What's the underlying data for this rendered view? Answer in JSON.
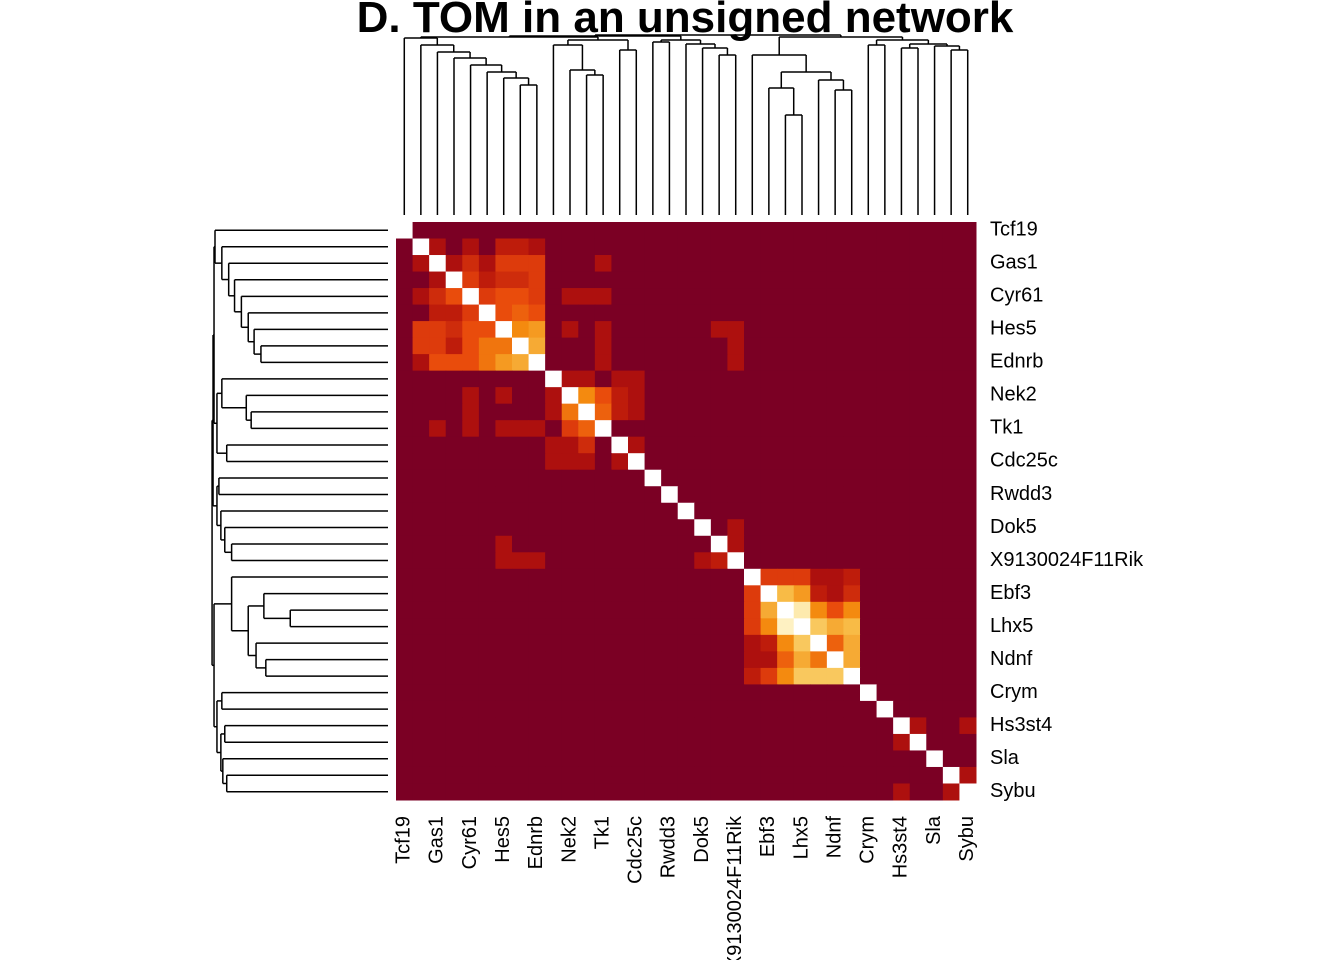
{
  "chart_data": {
    "type": "heatmap",
    "title": "D. TOM in an unsigned network",
    "categories": [
      "Tcf19",
      null,
      "Gas1",
      null,
      "Cyr61",
      null,
      "Hes5",
      null,
      "Ednrb",
      null,
      "Nek2",
      null,
      "Tk1",
      null,
      "Cdc25c",
      null,
      "Rwdd3",
      null,
      "Dok5",
      null,
      "X9130024F11Rik",
      null,
      "Ebf3",
      null,
      "Lhx5",
      null,
      "Ndnf",
      null,
      "Crym",
      null,
      "Hs3st4",
      null,
      "Sla",
      null,
      "Sybu"
    ],
    "zlim": [
      0,
      1
    ],
    "colorscale": [
      "#7b0024",
      "#b3120b",
      "#e8450c",
      "#f48a0f",
      "#f8c04c",
      "#fde8a8",
      "#ffffe8"
    ],
    "na_color": "#ffffff",
    "values": [
      [
        null,
        0,
        0,
        0,
        0,
        0,
        0,
        0,
        0,
        0,
        0,
        0,
        0,
        0,
        0,
        0,
        0,
        0,
        0,
        0,
        0,
        0,
        0,
        0,
        0,
        0,
        0,
        0,
        0,
        0,
        0,
        0,
        0,
        0,
        0
      ],
      [
        0,
        null,
        0.15,
        0,
        0.15,
        0,
        0.2,
        0.2,
        0.15,
        0,
        0,
        0,
        0,
        0,
        0,
        0,
        0,
        0,
        0,
        0,
        0,
        0,
        0,
        0,
        0,
        0,
        0,
        0,
        0,
        0,
        0,
        0,
        0,
        0,
        0
      ],
      [
        0,
        0.15,
        null,
        0.15,
        0.25,
        0.15,
        0.3,
        0.3,
        0.3,
        0,
        0,
        0,
        0.15,
        0,
        0,
        0,
        0,
        0,
        0,
        0,
        0,
        0,
        0,
        0,
        0,
        0,
        0,
        0,
        0,
        0,
        0,
        0,
        0,
        0,
        0
      ],
      [
        0,
        0,
        0.15,
        null,
        0.3,
        0.2,
        0.25,
        0.25,
        0.3,
        0,
        0,
        0,
        0,
        0,
        0,
        0,
        0,
        0,
        0,
        0,
        0,
        0,
        0,
        0,
        0,
        0,
        0,
        0,
        0,
        0,
        0,
        0,
        0,
        0,
        0
      ],
      [
        0,
        0.15,
        0.25,
        0.35,
        null,
        0.3,
        0.35,
        0.35,
        0.3,
        0,
        0.15,
        0.15,
        0.15,
        0,
        0,
        0,
        0,
        0,
        0,
        0,
        0,
        0,
        0,
        0,
        0,
        0,
        0,
        0,
        0,
        0,
        0,
        0,
        0,
        0,
        0
      ],
      [
        0,
        0,
        0.2,
        0.2,
        0.3,
        null,
        0.35,
        0.4,
        0.35,
        0,
        0,
        0,
        0,
        0,
        0,
        0,
        0,
        0,
        0,
        0,
        0,
        0,
        0,
        0,
        0,
        0,
        0,
        0,
        0,
        0,
        0,
        0,
        0,
        0,
        0
      ],
      [
        0,
        0.3,
        0.3,
        0.25,
        0.35,
        0.35,
        null,
        0.5,
        0.55,
        0,
        0.15,
        0,
        0.15,
        0,
        0,
        0,
        0,
        0,
        0,
        0.15,
        0.15,
        0,
        0,
        0,
        0,
        0,
        0,
        0,
        0,
        0,
        0,
        0,
        0,
        0,
        0
      ],
      [
        0,
        0.3,
        0.3,
        0.2,
        0.35,
        0.45,
        0.45,
        null,
        0.6,
        0,
        0,
        0,
        0.15,
        0,
        0,
        0,
        0,
        0,
        0,
        0,
        0.15,
        0,
        0,
        0,
        0,
        0,
        0,
        0,
        0,
        0,
        0,
        0,
        0,
        0,
        0
      ],
      [
        0,
        0.15,
        0.35,
        0.35,
        0.35,
        0.45,
        0.55,
        0.6,
        null,
        0,
        0,
        0,
        0.15,
        0,
        0,
        0,
        0,
        0,
        0,
        0,
        0.15,
        0,
        0,
        0,
        0,
        0,
        0,
        0,
        0,
        0,
        0,
        0,
        0,
        0,
        0
      ],
      [
        0,
        0,
        0,
        0,
        0,
        0,
        0,
        0,
        0,
        null,
        0.15,
        0.15,
        0,
        0.15,
        0.15,
        0,
        0,
        0,
        0,
        0,
        0,
        0,
        0,
        0,
        0,
        0,
        0,
        0,
        0,
        0,
        0,
        0,
        0,
        0,
        0
      ],
      [
        0,
        0,
        0,
        0,
        0.15,
        0,
        0.15,
        0,
        0,
        0.15,
        null,
        0.5,
        0.35,
        0.2,
        0.15,
        0,
        0,
        0,
        0,
        0,
        0,
        0,
        0,
        0,
        0,
        0,
        0,
        0,
        0,
        0,
        0,
        0,
        0,
        0,
        0
      ],
      [
        0,
        0,
        0,
        0,
        0.15,
        0,
        0,
        0,
        0,
        0.15,
        0.45,
        null,
        0.4,
        0.2,
        0.15,
        0,
        0,
        0,
        0,
        0,
        0,
        0,
        0,
        0,
        0,
        0,
        0,
        0,
        0,
        0,
        0,
        0,
        0,
        0,
        0
      ],
      [
        0,
        0,
        0.15,
        0,
        0.15,
        0,
        0.15,
        0.15,
        0.15,
        0,
        0.3,
        0.4,
        null,
        0,
        0,
        0,
        0,
        0,
        0,
        0,
        0,
        0,
        0,
        0,
        0,
        0,
        0,
        0,
        0,
        0,
        0,
        0,
        0,
        0,
        0
      ],
      [
        0,
        0,
        0,
        0,
        0,
        0,
        0,
        0,
        0,
        0.15,
        0.15,
        0.25,
        0,
        null,
        0.15,
        0,
        0,
        0,
        0,
        0,
        0,
        0,
        0,
        0,
        0,
        0,
        0,
        0,
        0,
        0,
        0,
        0,
        0,
        0,
        0
      ],
      [
        0,
        0,
        0,
        0,
        0,
        0,
        0,
        0,
        0,
        0.15,
        0.15,
        0.15,
        0,
        0.15,
        null,
        0,
        0,
        0,
        0,
        0,
        0,
        0,
        0,
        0,
        0,
        0,
        0,
        0,
        0,
        0,
        0,
        0,
        0,
        0,
        0
      ],
      [
        0,
        0,
        0,
        0,
        0,
        0,
        0,
        0,
        0,
        0,
        0,
        0,
        0,
        0,
        0,
        null,
        0,
        0,
        0,
        0,
        0,
        0,
        0,
        0,
        0,
        0,
        0,
        0,
        0,
        0,
        0,
        0,
        0,
        0,
        0
      ],
      [
        0,
        0,
        0,
        0,
        0,
        0,
        0,
        0,
        0,
        0,
        0,
        0,
        0,
        0,
        0,
        0,
        null,
        0,
        0,
        0,
        0,
        0,
        0,
        0,
        0,
        0,
        0,
        0,
        0,
        0,
        0,
        0,
        0,
        0,
        0
      ],
      [
        0,
        0,
        0,
        0,
        0,
        0,
        0,
        0,
        0,
        0,
        0,
        0,
        0,
        0,
        0,
        0,
        0,
        null,
        0,
        0,
        0,
        0,
        0,
        0,
        0,
        0,
        0,
        0,
        0,
        0,
        0,
        0,
        0,
        0,
        0
      ],
      [
        0,
        0,
        0,
        0,
        0,
        0,
        0,
        0,
        0,
        0,
        0,
        0,
        0,
        0,
        0,
        0,
        0,
        0,
        null,
        0,
        0.15,
        0,
        0,
        0,
        0,
        0,
        0,
        0,
        0,
        0,
        0,
        0,
        0,
        0,
        0
      ],
      [
        0,
        0,
        0,
        0,
        0,
        0,
        0.15,
        0,
        0,
        0,
        0,
        0,
        0,
        0,
        0,
        0,
        0,
        0,
        0,
        null,
        0.15,
        0,
        0,
        0,
        0,
        0,
        0,
        0,
        0,
        0,
        0,
        0,
        0,
        0,
        0
      ],
      [
        0,
        0,
        0,
        0,
        0,
        0,
        0.15,
        0.15,
        0.15,
        0,
        0,
        0,
        0,
        0,
        0,
        0,
        0,
        0,
        0.15,
        0.2,
        null,
        0,
        0,
        0,
        0,
        0,
        0,
        0,
        0,
        0,
        0,
        0,
        0,
        0,
        0
      ],
      [
        0,
        0,
        0,
        0,
        0,
        0,
        0,
        0,
        0,
        0,
        0,
        0,
        0,
        0,
        0,
        0,
        0,
        0,
        0,
        0,
        0,
        null,
        0.3,
        0.3,
        0.3,
        0.15,
        0.15,
        0.2,
        0,
        0,
        0,
        0,
        0,
        0,
        0
      ],
      [
        0,
        0,
        0,
        0,
        0,
        0,
        0,
        0,
        0,
        0,
        0,
        0,
        0,
        0,
        0,
        0,
        0,
        0,
        0,
        0,
        0,
        0.3,
        null,
        0.65,
        0.55,
        0.2,
        0.15,
        0.25,
        0,
        0,
        0,
        0,
        0,
        0,
        0
      ],
      [
        0,
        0,
        0,
        0,
        0,
        0,
        0,
        0,
        0,
        0,
        0,
        0,
        0,
        0,
        0,
        0,
        0,
        0,
        0,
        0,
        0,
        0.3,
        0.6,
        null,
        0.85,
        0.5,
        0.35,
        0.5,
        0,
        0,
        0,
        0,
        0,
        0,
        0
      ],
      [
        0,
        0,
        0,
        0,
        0,
        0,
        0,
        0,
        0,
        0,
        0,
        0,
        0,
        0,
        0,
        0,
        0,
        0,
        0,
        0,
        0,
        0.3,
        0.5,
        0.9,
        null,
        0.7,
        0.6,
        0.65,
        0,
        0,
        0,
        0,
        0,
        0,
        0
      ],
      [
        0,
        0,
        0,
        0,
        0,
        0,
        0,
        0,
        0,
        0,
        0,
        0,
        0,
        0,
        0,
        0,
        0,
        0,
        0,
        0,
        0,
        0.15,
        0.2,
        0.5,
        0.7,
        null,
        0.4,
        0.6,
        0,
        0,
        0,
        0,
        0,
        0,
        0
      ],
      [
        0,
        0,
        0,
        0,
        0,
        0,
        0,
        0,
        0,
        0,
        0,
        0,
        0,
        0,
        0,
        0,
        0,
        0,
        0,
        0,
        0,
        0.15,
        0.15,
        0.4,
        0.6,
        0.45,
        null,
        0.6,
        0,
        0,
        0,
        0,
        0,
        0,
        0
      ],
      [
        0,
        0,
        0,
        0,
        0,
        0,
        0,
        0,
        0,
        0,
        0,
        0,
        0,
        0,
        0,
        0,
        0,
        0,
        0,
        0,
        0,
        0.2,
        0.3,
        0.5,
        0.7,
        0.7,
        0.7,
        null,
        0,
        0,
        0,
        0,
        0,
        0,
        0
      ],
      [
        0,
        0,
        0,
        0,
        0,
        0,
        0,
        0,
        0,
        0,
        0,
        0,
        0,
        0,
        0,
        0,
        0,
        0,
        0,
        0,
        0,
        0,
        0,
        0,
        0,
        0,
        0,
        0,
        null,
        0,
        0,
        0,
        0,
        0,
        0
      ],
      [
        0,
        0,
        0,
        0,
        0,
        0,
        0,
        0,
        0,
        0,
        0,
        0,
        0,
        0,
        0,
        0,
        0,
        0,
        0,
        0,
        0,
        0,
        0,
        0,
        0,
        0,
        0,
        0,
        0,
        null,
        0,
        0,
        0,
        0,
        0
      ],
      [
        0,
        0,
        0,
        0,
        0,
        0,
        0,
        0,
        0,
        0,
        0,
        0,
        0,
        0,
        0,
        0,
        0,
        0,
        0,
        0,
        0,
        0,
        0,
        0,
        0,
        0,
        0,
        0,
        0,
        0,
        null,
        0.15,
        0,
        0,
        0.15
      ],
      [
        0,
        0,
        0,
        0,
        0,
        0,
        0,
        0,
        0,
        0,
        0,
        0,
        0,
        0,
        0,
        0,
        0,
        0,
        0,
        0,
        0,
        0,
        0,
        0,
        0,
        0,
        0,
        0,
        0,
        0,
        0.15,
        null,
        0,
        0,
        0
      ],
      [
        0,
        0,
        0,
        0,
        0,
        0,
        0,
        0,
        0,
        0,
        0,
        0,
        0,
        0,
        0,
        0,
        0,
        0,
        0,
        0,
        0,
        0,
        0,
        0,
        0,
        0,
        0,
        0,
        0,
        0,
        0,
        0,
        null,
        0,
        0
      ],
      [
        0,
        0,
        0,
        0,
        0,
        0,
        0,
        0,
        0,
        0,
        0,
        0,
        0,
        0,
        0,
        0,
        0,
        0,
        0,
        0,
        0,
        0,
        0,
        0,
        0,
        0,
        0,
        0,
        0,
        0,
        0,
        0,
        0,
        null,
        0.15
      ],
      [
        0,
        0,
        0,
        0,
        0,
        0,
        0,
        0,
        0,
        0,
        0,
        0,
        0,
        0,
        0,
        0,
        0,
        0,
        0,
        0,
        0,
        0,
        0,
        0,
        0,
        0,
        0,
        0,
        0,
        0,
        0.15,
        0,
        0,
        0.15,
        null
      ]
    ]
  }
}
